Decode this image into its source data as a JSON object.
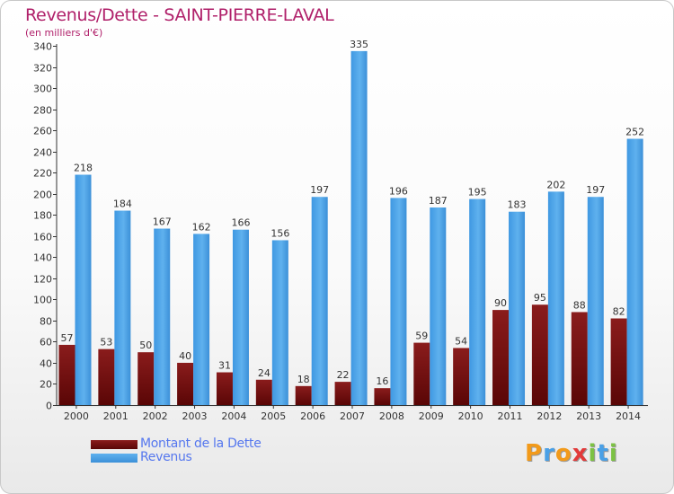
{
  "header": {
    "title": "Revenus/Dette - SAINT-PIERRE-LAVAL",
    "subtitle": "(en milliers d'€)"
  },
  "legend": {
    "items": [
      {
        "label": "Montant de la Dette",
        "color": "#7a1414"
      },
      {
        "label": "Revenus",
        "color": "#4aa0e6"
      }
    ]
  },
  "logo": {
    "text": "Proxiti"
  },
  "chart_data": {
    "type": "bar",
    "title": "Revenus/Dette - SAINT-PIERRE-LAVAL",
    "ylabel": "(en milliers d'€)",
    "xlabel": "",
    "categories": [
      "2000",
      "2001",
      "2002",
      "2003",
      "2004",
      "2005",
      "2006",
      "2007",
      "2008",
      "2009",
      "2010",
      "2011",
      "2012",
      "2013",
      "2014"
    ],
    "series": [
      {
        "name": "Montant de la Dette",
        "color": "#7a1414",
        "values": [
          57,
          53,
          50,
          40,
          31,
          24,
          18,
          22,
          16,
          59,
          54,
          90,
          95,
          88,
          82
        ]
      },
      {
        "name": "Revenus",
        "color": "#4aa0e6",
        "values": [
          218,
          184,
          167,
          162,
          166,
          156,
          197,
          335,
          196,
          187,
          195,
          183,
          202,
          197,
          252
        ]
      }
    ],
    "ylim": [
      0,
      340
    ],
    "yticks": [
      0,
      20,
      40,
      60,
      80,
      100,
      120,
      140,
      160,
      180,
      200,
      220,
      240,
      260,
      280,
      300,
      320,
      340
    ],
    "grid": false,
    "legend_position": "bottom-left"
  }
}
